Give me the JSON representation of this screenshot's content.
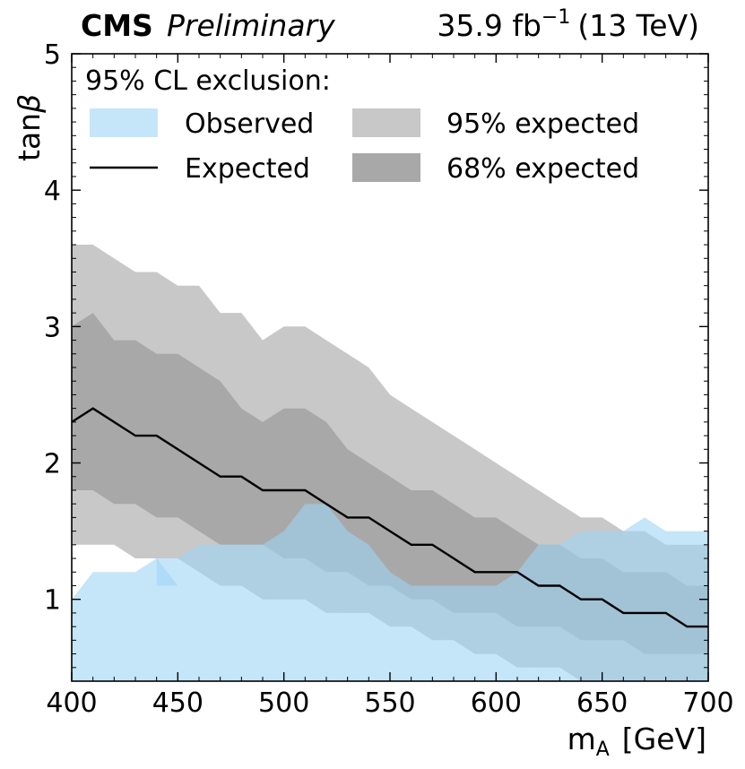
{
  "chart_data": {
    "type": "area",
    "experiment": "CMS",
    "status": "Preliminary",
    "lumi_label": "35.9 fb",
    "lumi_exponent": "−1",
    "energy_label": "(13 TeV)",
    "xlabel_main": "m",
    "xlabel_sub": "A",
    "xlabel_unit": "[GeV]",
    "ylabel_main": "tan",
    "ylabel_symbol": "β",
    "xlim": [
      400,
      700
    ],
    "ylim": [
      0.4,
      5.0
    ],
    "xticks": [
      400,
      450,
      500,
      550,
      600,
      650,
      700
    ],
    "yticks": [
      1,
      2,
      3,
      4,
      5
    ],
    "legend_title": "95% CL exclusion:",
    "legend": {
      "observed": "Observed",
      "expected": "Expected",
      "band95": "95% expected",
      "band68": "68% expected"
    },
    "colors": {
      "observed": "#9ed3f5",
      "band95": "#c8c8c8",
      "band68": "#a8a8a8",
      "expected": "#000000",
      "frame": "#000000"
    },
    "mass": [
      400,
      410,
      420,
      430,
      440,
      450,
      460,
      470,
      480,
      490,
      500,
      510,
      520,
      530,
      540,
      550,
      560,
      570,
      580,
      590,
      600,
      610,
      620,
      630,
      640,
      650,
      660,
      670,
      680,
      690,
      700
    ],
    "expected": [
      2.3,
      2.4,
      2.3,
      2.2,
      2.2,
      2.1,
      2.0,
      1.9,
      1.9,
      1.8,
      1.8,
      1.8,
      1.7,
      1.6,
      1.6,
      1.5,
      1.4,
      1.4,
      1.3,
      1.2,
      1.2,
      1.2,
      1.1,
      1.1,
      1.0,
      1.0,
      0.9,
      0.9,
      0.9,
      0.8,
      0.8
    ],
    "band95_up": [
      3.6,
      3.6,
      3.5,
      3.4,
      3.4,
      3.3,
      3.3,
      3.1,
      3.1,
      2.9,
      3.0,
      3.0,
      2.9,
      2.8,
      2.7,
      2.5,
      2.4,
      2.3,
      2.2,
      2.1,
      2.0,
      1.9,
      1.8,
      1.7,
      1.6,
      1.6,
      1.5,
      1.5,
      1.4,
      1.4,
      1.4
    ],
    "band68_up": [
      3.0,
      3.1,
      2.9,
      2.9,
      2.8,
      2.8,
      2.7,
      2.6,
      2.4,
      2.3,
      2.4,
      2.4,
      2.3,
      2.1,
      2.0,
      1.9,
      1.8,
      1.8,
      1.7,
      1.6,
      1.6,
      1.5,
      1.4,
      1.4,
      1.3,
      1.3,
      1.2,
      1.2,
      1.2,
      1.1,
      1.1
    ],
    "band68_dn": [
      1.8,
      1.8,
      1.7,
      1.7,
      1.6,
      1.6,
      1.5,
      1.4,
      1.4,
      1.4,
      1.3,
      1.3,
      1.2,
      1.2,
      1.1,
      1.1,
      1.0,
      1.0,
      0.9,
      0.9,
      0.9,
      0.8,
      0.8,
      0.8,
      0.7,
      0.7,
      0.7,
      0.6,
      0.6,
      0.6,
      0.6
    ],
    "band95_dn": [
      1.4,
      1.4,
      1.4,
      1.3,
      1.3,
      1.3,
      1.2,
      1.1,
      1.1,
      1.0,
      1.0,
      1.0,
      0.9,
      0.9,
      0.9,
      0.8,
      0.8,
      0.7,
      0.7,
      0.6,
      0.6,
      0.5,
      0.5,
      0.5,
      0.4,
      0.4,
      0.4,
      0.4,
      0.4,
      0.4,
      0.4
    ],
    "observed_upper": [
      1.0,
      1.2,
      1.2,
      1.2,
      1.3,
      1.1,
      1.2,
      1.1,
      1.1,
      1.0,
      1.1,
      1.1,
      1.0,
      0.9,
      0.9,
      0.9,
      0.8,
      0.8,
      0.7,
      0.7,
      0.6,
      0.6,
      0.5,
      0.5,
      0.5,
      0.4,
      0.4,
      0.4,
      0.4,
      0.4,
      0.4
    ],
    "observed_lower": [
      0.4,
      0.4,
      0.4,
      0.4,
      0.4,
      0.4,
      0.4,
      0.4,
      0.4,
      0.4,
      0.4,
      0.4,
      0.4,
      0.4,
      0.4,
      0.4,
      0.4,
      0.4,
      0.4,
      0.4,
      0.4,
      0.4,
      0.4,
      0.4,
      0.4,
      0.4,
      0.4,
      0.4,
      0.4,
      0.4,
      0.4
    ],
    "observed_region2": {
      "mass": [
        440,
        450,
        460,
        470,
        480,
        490,
        500,
        510,
        520,
        530,
        540,
        550,
        560,
        570,
        580,
        590,
        600,
        610,
        620,
        630,
        640,
        650,
        660,
        670,
        680,
        690,
        700
      ],
      "upper": [
        1.3,
        1.3,
        1.4,
        1.4,
        1.4,
        1.4,
        1.5,
        1.7,
        1.7,
        1.5,
        1.4,
        1.2,
        1.1,
        1.1,
        1.1,
        1.1,
        1.1,
        1.2,
        1.4,
        1.4,
        1.5,
        1.5,
        1.5,
        1.6,
        1.5,
        1.5,
        1.5
      ],
      "lower": [
        1.1,
        1.1,
        1.2,
        1.1,
        1.1,
        1.0,
        1.1,
        1.1,
        1.0,
        0.9,
        0.9,
        0.9,
        0.8,
        0.8,
        0.7,
        0.7,
        0.6,
        0.6,
        0.5,
        0.5,
        0.5,
        0.4,
        0.4,
        0.4,
        0.4,
        0.4,
        0.4
      ]
    }
  }
}
